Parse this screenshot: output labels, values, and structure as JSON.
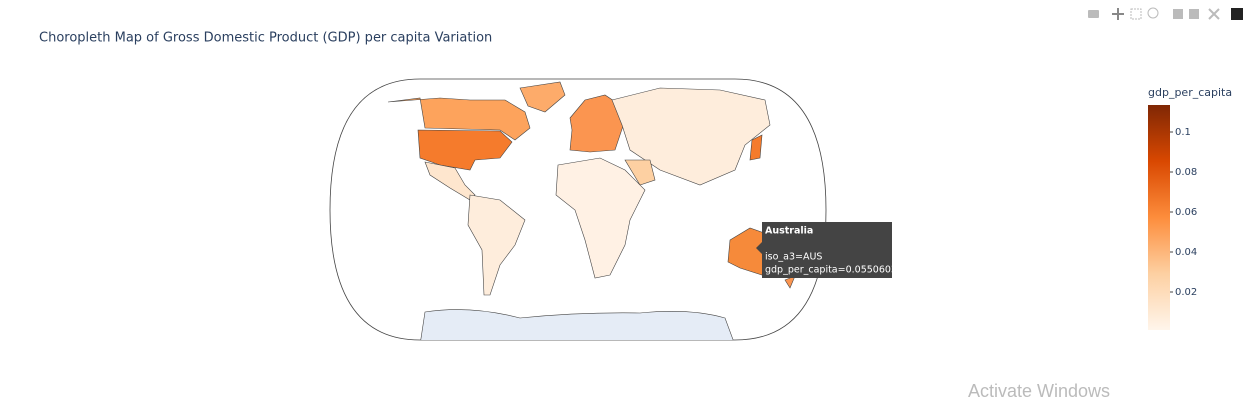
{
  "chart_data": {
    "type": "choropleth",
    "title": "Choropleth Map of Gross Domestic Product (GDP) per capita Variation",
    "colorbar": {
      "title": "gdp_per_capita",
      "range": [
        0.001,
        0.1135
      ],
      "ticks": [
        0.02,
        0.04,
        0.06,
        0.08,
        0.1
      ],
      "colors": [
        "#fff5eb",
        "#fdd0a2",
        "#fd8d3c",
        "#d94801",
        "#7f2704"
      ]
    },
    "hover": {
      "name": "Australia",
      "lines": [
        "iso_a3=AUS",
        "gdp_per_capita=0.05506033"
      ]
    }
  },
  "watermark": "Activate Windows"
}
